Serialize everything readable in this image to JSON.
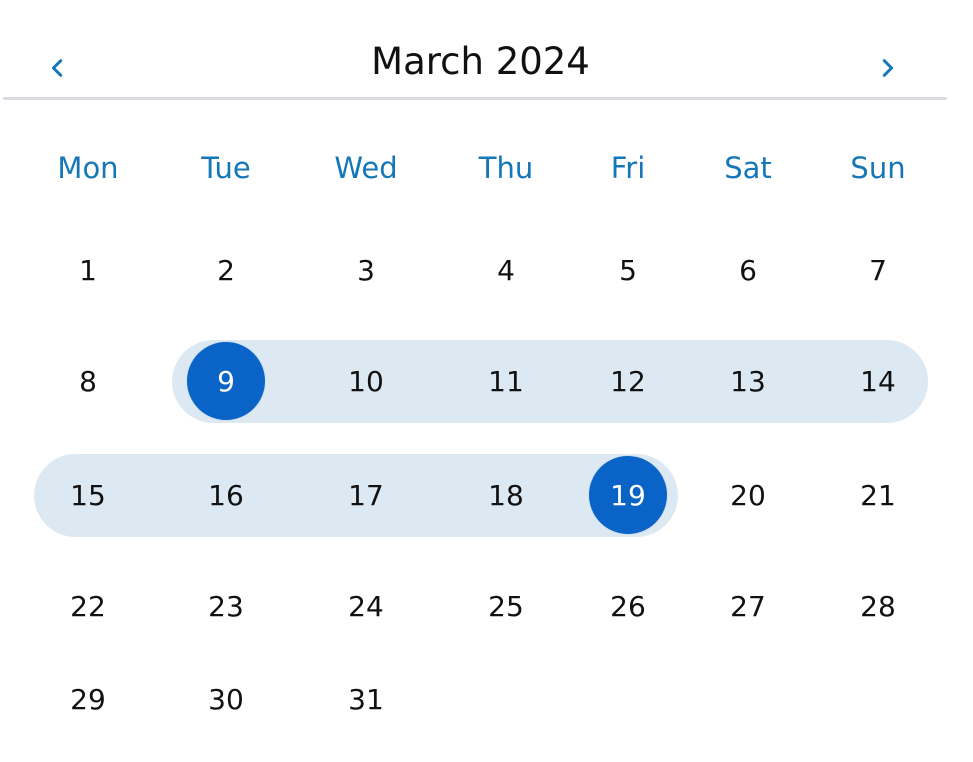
{
  "header": {
    "title": "March 2024",
    "prev_icon": "chevron-left-icon",
    "next_icon": "chevron-right-icon"
  },
  "weekdays": [
    "Mon",
    "Tue",
    "Wed",
    "Thu",
    "Fri",
    "Sat",
    "Sun"
  ],
  "weeks": [
    [
      "1",
      "2",
      "3",
      "4",
      "5",
      "6",
      "7"
    ],
    [
      "8",
      "9",
      "10",
      "11",
      "12",
      "13",
      "14"
    ],
    [
      "15",
      "16",
      "17",
      "18",
      "19",
      "20",
      "21"
    ],
    [
      "22",
      "23",
      "24",
      "25",
      "26",
      "27",
      "28"
    ],
    [
      "29",
      "30",
      "31",
      "",
      "",
      "",
      ""
    ]
  ],
  "selection": {
    "start": "9",
    "end": "19"
  },
  "colors": {
    "accent": "#1577b8",
    "selected_fill": "#0a63c6",
    "range_fill": "#dce9f3",
    "text": "#111111"
  }
}
